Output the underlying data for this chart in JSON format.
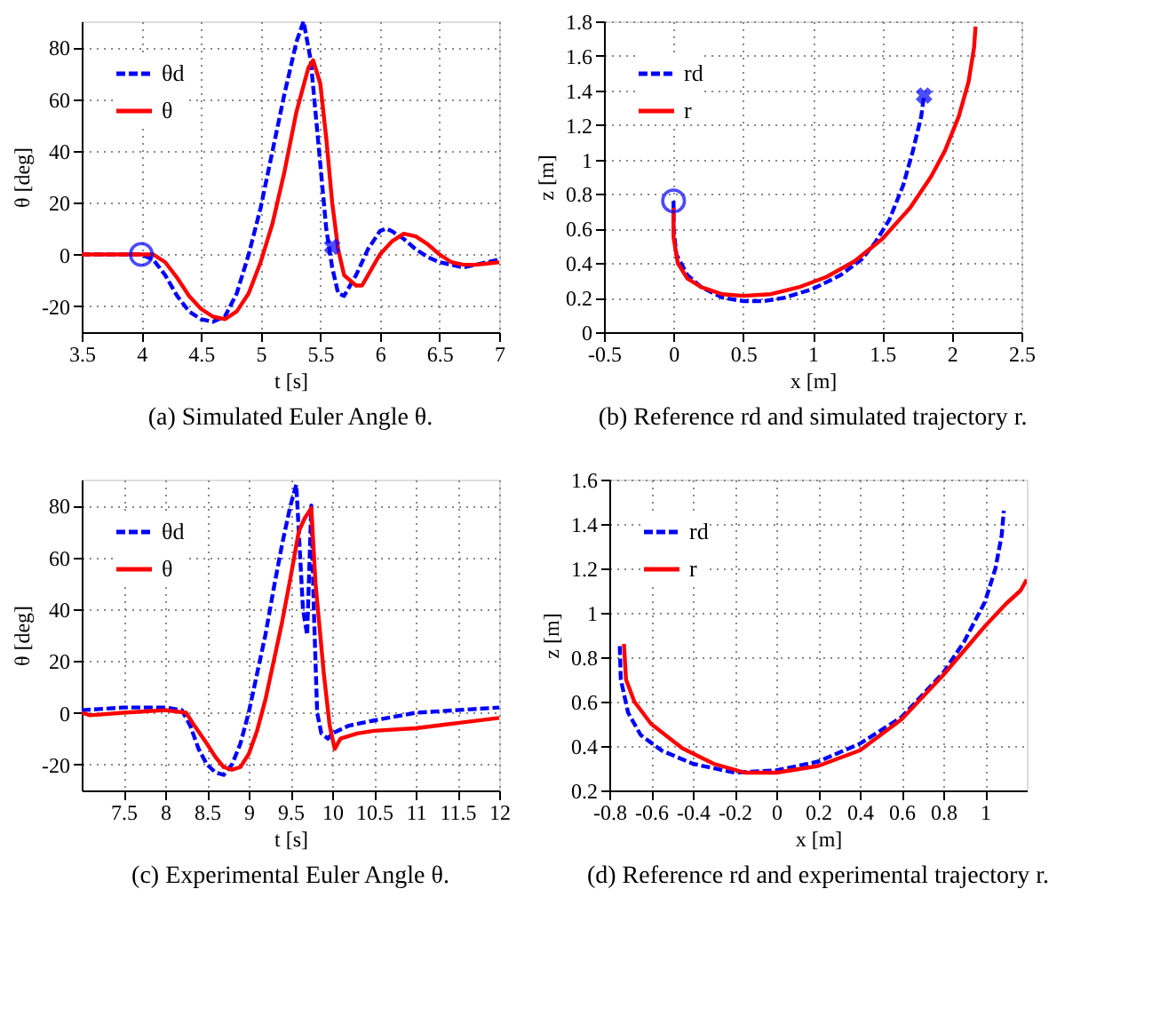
{
  "chart_data": [
    {
      "type": "line",
      "xlabel": "t [s]",
      "ylabel": "θ [deg]",
      "xlim": [
        3.5,
        7
      ],
      "ylim": [
        -30,
        90
      ],
      "xticks": [
        3.5,
        4,
        4.5,
        5,
        5.5,
        6,
        6.5,
        7
      ],
      "yticks": [
        -20,
        0,
        20,
        40,
        60,
        80
      ],
      "grid": true,
      "legend": "top left",
      "annotations": [
        "(a) Simulated Euler Angle θ."
      ],
      "series": [
        {
          "name": "θd",
          "color": "#0000ff",
          "line_style": "dashed",
          "x": [
            3.5,
            4.0,
            4.1,
            4.2,
            4.3,
            4.4,
            4.5,
            4.6,
            4.7,
            4.8,
            4.9,
            5.0,
            5.1,
            5.2,
            5.3,
            5.36,
            5.42,
            5.45,
            5.5,
            5.55,
            5.6,
            5.65,
            5.7,
            5.8,
            5.9,
            6.0,
            6.05,
            6.1,
            6.2,
            6.3,
            6.4,
            6.5,
            6.6,
            6.7,
            6.8,
            6.9,
            7.0
          ],
          "values": [
            0,
            0,
            -2,
            -8,
            -16,
            -22,
            -25,
            -26,
            -24,
            -15,
            0,
            18,
            40,
            62,
            82,
            90,
            75,
            60,
            35,
            10,
            -5,
            -15,
            -16,
            -8,
            2,
            9,
            10,
            9,
            6,
            2,
            -1,
            -3,
            -4,
            -5,
            -4,
            -3,
            -2
          ]
        },
        {
          "name": "θ",
          "color": "#ff0000",
          "line_style": "solid",
          "x": [
            3.5,
            4.1,
            4.2,
            4.3,
            4.4,
            4.5,
            4.6,
            4.7,
            4.8,
            4.9,
            5.0,
            5.1,
            5.2,
            5.3,
            5.4,
            5.44,
            5.5,
            5.55,
            5.6,
            5.65,
            5.7,
            5.8,
            5.85,
            5.9,
            6.0,
            6.1,
            6.2,
            6.3,
            6.4,
            6.5,
            6.6,
            6.7,
            6.8,
            6.9,
            7.0
          ],
          "values": [
            0,
            0,
            -3,
            -9,
            -16,
            -21,
            -24,
            -25,
            -22,
            -15,
            -3,
            12,
            32,
            55,
            72,
            75,
            66,
            45,
            20,
            2,
            -8,
            -12,
            -12,
            -8,
            0,
            5,
            8,
            7,
            4,
            0,
            -3,
            -4,
            -4,
            -3.5,
            -3
          ]
        },
        {
          "type": "scatter",
          "marker": "circle",
          "color": "#0000ff",
          "x": [
            4.0
          ],
          "values": [
            0
          ]
        },
        {
          "type": "scatter",
          "marker": "cross",
          "color": "#0000ff",
          "x": [
            5.6
          ],
          "values": [
            3
          ]
        }
      ]
    },
    {
      "type": "line",
      "xlabel": "x [m]",
      "ylabel": "z [m]",
      "xlim": [
        -0.5,
        2.5
      ],
      "ylim": [
        0,
        1.8
      ],
      "xticks": [
        -0.5,
        0,
        0.5,
        1,
        1.5,
        2,
        2.5
      ],
      "yticks": [
        0,
        0.2,
        0.4,
        0.6,
        0.8,
        1,
        1.2,
        1.4,
        1.6,
        1.8
      ],
      "grid": true,
      "legend": "top left",
      "annotations": [
        "(b) Reference rd and simulated trajectory r."
      ],
      "series": [
        {
          "name": "rd",
          "color": "#0000ff",
          "line_style": "dashed",
          "x": [
            0,
            0,
            0.02,
            0.1,
            0.2,
            0.35,
            0.5,
            0.65,
            0.8,
            1.0,
            1.2,
            1.35,
            1.45,
            1.55,
            1.65,
            1.72,
            1.78,
            1.8
          ],
          "values": [
            0.76,
            0.6,
            0.45,
            0.33,
            0.26,
            0.2,
            0.18,
            0.18,
            0.2,
            0.25,
            0.33,
            0.42,
            0.52,
            0.65,
            0.85,
            1.05,
            1.25,
            1.37
          ]
        },
        {
          "name": "r",
          "color": "#ff0000",
          "line_style": "solid",
          "x": [
            0,
            0,
            0.03,
            0.1,
            0.2,
            0.35,
            0.5,
            0.7,
            0.9,
            1.1,
            1.3,
            1.5,
            1.7,
            1.85,
            1.95,
            2.05,
            2.12,
            2.16,
            2.17
          ],
          "values": [
            0.72,
            0.55,
            0.4,
            0.31,
            0.26,
            0.22,
            0.21,
            0.22,
            0.26,
            0.32,
            0.41,
            0.54,
            0.72,
            0.9,
            1.05,
            1.25,
            1.45,
            1.65,
            1.77
          ]
        },
        {
          "type": "scatter",
          "marker": "circle",
          "color": "#0000ff",
          "x": [
            0
          ],
          "values": [
            0.76
          ]
        },
        {
          "type": "scatter",
          "marker": "cross",
          "color": "#0000ff",
          "x": [
            1.8
          ],
          "values": [
            1.37
          ]
        }
      ]
    },
    {
      "type": "line",
      "xlabel": "t [s]",
      "ylabel": "θ [deg]",
      "xlim": [
        7,
        12
      ],
      "ylim": [
        -30,
        90
      ],
      "xticks": [
        7.5,
        8,
        8.5,
        9,
        9.5,
        10,
        10.5,
        11,
        11.5,
        12
      ],
      "yticks": [
        -20,
        0,
        20,
        40,
        60,
        80
      ],
      "grid": true,
      "legend": "top left",
      "annotations": [
        "(c) Experimental Euler Angle θ."
      ],
      "series": [
        {
          "name": "θd",
          "color": "#0000ff",
          "line_style": "dashed",
          "x": [
            7,
            7.5,
            8,
            8.2,
            8.3,
            8.4,
            8.5,
            8.6,
            8.7,
            8.8,
            8.9,
            9.0,
            9.1,
            9.2,
            9.3,
            9.4,
            9.5,
            9.57,
            9.6,
            9.65,
            9.7,
            9.75,
            9.78,
            9.82,
            9.87,
            9.95,
            10.0,
            10.2,
            10.5,
            11,
            11.5,
            12
          ],
          "values": [
            1,
            2,
            2,
            1,
            -5,
            -14,
            -20,
            -23,
            -24,
            -20,
            -12,
            0,
            15,
            30,
            48,
            65,
            80,
            88,
            70,
            40,
            30,
            80,
            40,
            0,
            -8,
            -10,
            -8,
            -5,
            -3,
            0,
            1,
            2
          ]
        },
        {
          "name": "θ",
          "color": "#ff0000",
          "line_style": "solid",
          "x": [
            7,
            7.1,
            7.5,
            8,
            8.25,
            8.35,
            8.5,
            8.6,
            8.7,
            8.8,
            8.9,
            9.0,
            9.1,
            9.2,
            9.3,
            9.4,
            9.5,
            9.6,
            9.67,
            9.75,
            9.8,
            9.9,
            9.97,
            10.03,
            10.1,
            10.3,
            10.5,
            11,
            11.5,
            12
          ],
          "values": [
            0,
            -1,
            0,
            1,
            0,
            -5,
            -12,
            -17,
            -21,
            -22,
            -21,
            -16,
            -7,
            5,
            20,
            35,
            52,
            70,
            75,
            79,
            50,
            15,
            -5,
            -14,
            -10,
            -8,
            -7,
            -6,
            -4,
            -2
          ]
        }
      ]
    },
    {
      "type": "line",
      "xlabel": "x [m]",
      "ylabel": "z [m]",
      "xlim": [
        -0.8,
        1.2
      ],
      "ylim": [
        0.2,
        1.6
      ],
      "xticks": [
        -0.8,
        -0.6,
        -0.4,
        -0.2,
        0,
        0.2,
        0.4,
        0.6,
        0.8,
        1
      ],
      "yticks": [
        0.2,
        0.4,
        0.6,
        0.8,
        1,
        1.2,
        1.4,
        1.6
      ],
      "grid": true,
      "legend": "top left",
      "annotations": [
        "(d) Reference rd and experimental trajectory r."
      ],
      "series": [
        {
          "name": "rd",
          "color": "#0000ff",
          "line_style": "dashed",
          "x": [
            -0.75,
            -0.745,
            -0.71,
            -0.65,
            -0.55,
            -0.4,
            -0.2,
            0,
            0.2,
            0.4,
            0.6,
            0.8,
            0.9,
            1.0,
            1.05,
            1.08,
            1.09
          ],
          "values": [
            0.85,
            0.7,
            0.55,
            0.45,
            0.38,
            0.32,
            0.28,
            0.29,
            0.33,
            0.41,
            0.53,
            0.73,
            0.87,
            1.05,
            1.2,
            1.35,
            1.46
          ]
        },
        {
          "name": "r",
          "color": "#ff0000",
          "line_style": "solid",
          "x": [
            -0.73,
            -0.72,
            -0.68,
            -0.6,
            -0.45,
            -0.3,
            -0.15,
            0,
            0.2,
            0.4,
            0.6,
            0.8,
            0.9,
            1.0,
            1.1,
            1.17,
            1.2
          ],
          "values": [
            0.86,
            0.7,
            0.6,
            0.5,
            0.39,
            0.32,
            0.28,
            0.28,
            0.31,
            0.38,
            0.52,
            0.72,
            0.83,
            0.94,
            1.04,
            1.1,
            1.15
          ]
        }
      ]
    }
  ]
}
